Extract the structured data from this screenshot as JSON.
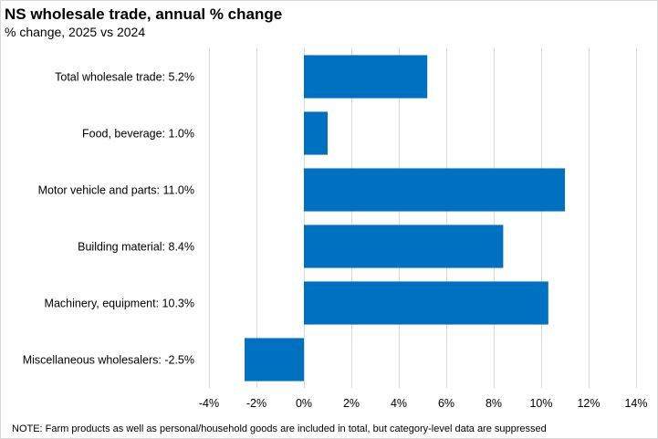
{
  "chart_data": {
    "type": "bar",
    "orientation": "horizontal",
    "title": "NS wholesale trade, annual % change",
    "subtitle": "% change, 2025 vs 2024",
    "categories": [
      "Total wholesale trade: 5.2%",
      "Food, beverage: 1.0%",
      "Motor vehicle and parts: 11.0%",
      "Building material: 8.4%",
      "Machinery, equipment: 10.3%",
      "Miscellaneous wholesalers: -2.5%"
    ],
    "values": [
      5.2,
      1.0,
      11.0,
      8.4,
      10.3,
      -2.5
    ],
    "xlim": [
      -4,
      14
    ],
    "xticks": [
      -4,
      -2,
      0,
      2,
      4,
      6,
      8,
      10,
      12,
      14
    ],
    "tick_suffix": "%",
    "xlabel": "",
    "ylabel": "",
    "grid": "vertical",
    "legend": "none",
    "bar_color": "#0070c0",
    "grid_color": "#d9d9d9",
    "note": "NOTE:  Farm products as well as personal/household goods are included in total, but category-level  data are suppressed"
  }
}
